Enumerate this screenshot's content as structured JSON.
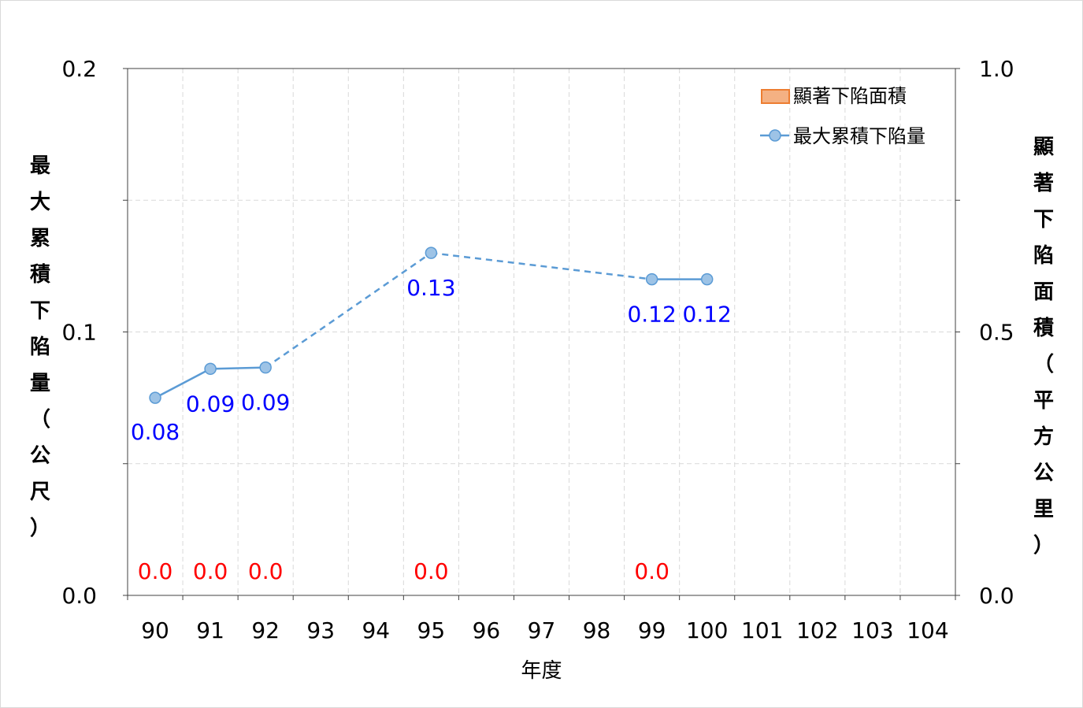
{
  "chart_data": {
    "type": "line+bar",
    "xlabel": "年度",
    "ylabel_left": "最大累積下陷量（公尺）",
    "ylabel_right": "顯著下陷面積（平方公里）",
    "categories": [
      "90",
      "91",
      "92",
      "93",
      "94",
      "95",
      "96",
      "97",
      "98",
      "99",
      "100",
      "101",
      "102",
      "103",
      "104"
    ],
    "ylim_left": [
      0,
      0.2
    ],
    "yticks_left": [
      "0.0",
      "0.1",
      "0.2"
    ],
    "ylim_right": [
      0,
      1.0
    ],
    "yticks_right": [
      "0.0",
      "0.5",
      "1.0"
    ],
    "grid": true,
    "legend_position": "top-right",
    "series": [
      {
        "name": "顯著下陷面積",
        "type": "bar",
        "axis": "right",
        "color": "#f4b183",
        "edge": "#ed7d31",
        "values": [
          0.0,
          0.0,
          0.0,
          null,
          null,
          0.0,
          null,
          null,
          null,
          0.0,
          null,
          null,
          null,
          null,
          null
        ],
        "labels": [
          "0.0",
          "0.0",
          "0.0",
          null,
          null,
          "0.0",
          null,
          null,
          null,
          "0.0",
          null,
          null,
          null,
          null,
          null
        ],
        "label_color": "#ff0000"
      },
      {
        "name": "最大累積下陷量",
        "type": "line",
        "axis": "left",
        "color": "#5b9bd5",
        "marker_fill": "#9dc3e6",
        "values": [
          0.075,
          0.086,
          0.0865,
          null,
          null,
          0.13,
          null,
          null,
          null,
          0.12,
          0.12,
          null,
          null,
          null,
          null
        ],
        "labels": [
          "0.08",
          "0.09",
          "0.09",
          null,
          null,
          "0.13",
          null,
          null,
          null,
          "0.12",
          "0.12",
          null,
          null,
          null,
          null
        ],
        "label_color": "#0000ff"
      }
    ]
  }
}
